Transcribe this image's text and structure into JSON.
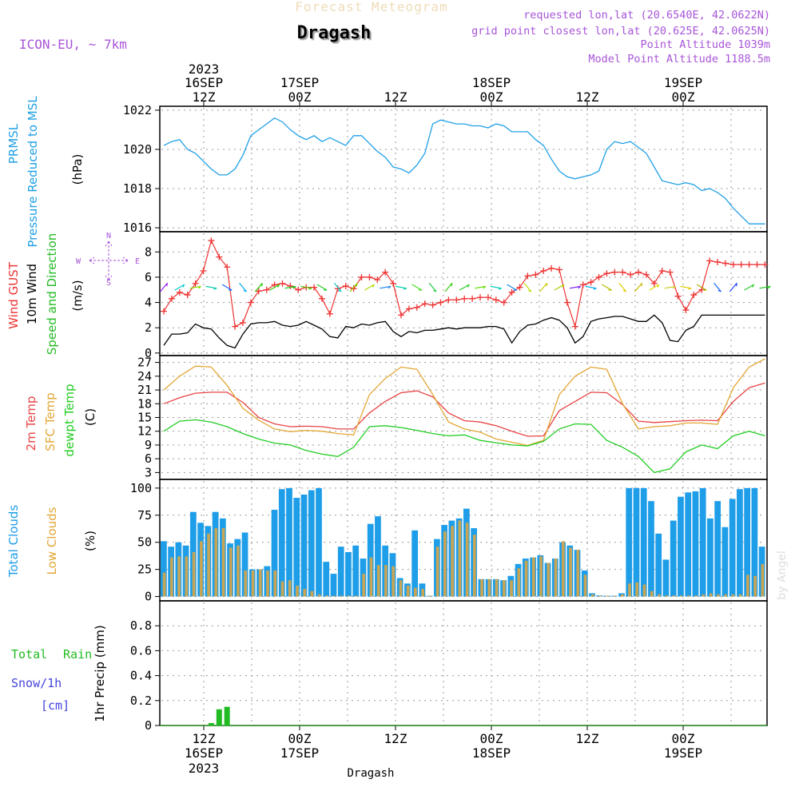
{
  "header": {
    "watermark_title": "Forecast Meteogram",
    "station": "Dragash",
    "model": "ICON-EU, ~ 7km",
    "requested": "requested lon,lat (20.6540E, 42.0622N)",
    "grid_point": "grid point closest lon,lat (20.625E, 42.0625N)",
    "point_alt": "Point Altitude 1039m",
    "model_alt": "Model Point Altitude 1188.5m",
    "footer_station": "Dragash",
    "credit": "by Angel"
  },
  "time_axis": {
    "top_year": "2023",
    "ticks": [
      {
        "hour": 12,
        "top": "12Z",
        "top_day": "16SEP",
        "bottom": "12Z",
        "bottom_day": "16SEP"
      },
      {
        "hour": 24,
        "top": "00Z",
        "top_day": "17SEP",
        "bottom": "00Z",
        "bottom_day": "17SEP"
      },
      {
        "hour": 36,
        "top": "12Z",
        "top_day": "",
        "bottom": "12Z",
        "bottom_day": ""
      },
      {
        "hour": 48,
        "top": "00Z",
        "top_day": "18SEP",
        "bottom": "00Z",
        "bottom_day": "18SEP"
      },
      {
        "hour": 60,
        "top": "12Z",
        "top_day": "",
        "bottom": "12Z",
        "bottom_day": ""
      },
      {
        "hour": 72,
        "top": "00Z",
        "top_day": "19SEP",
        "bottom": "00Z",
        "bottom_day": "19SEP"
      }
    ],
    "bottom_year": "2023"
  },
  "panel_labels": {
    "pressure": [
      "PRMSL",
      "Pressure Reduced to MSL",
      "(hPa)"
    ],
    "wind": [
      "Wind GUST",
      "10m Wind",
      "Speed and Direction",
      "(m/s)"
    ],
    "compass": [
      "N",
      "W",
      "E",
      "S"
    ],
    "temp": [
      "2m Temp",
      "SFC Temp",
      "dewpt Temp",
      "(C)"
    ],
    "clouds": [
      "Total Clouds",
      "Low Clouds",
      "(%)"
    ],
    "precip": [
      "Total",
      "Rain",
      "Snow/1h",
      "[cm]",
      "1hr Precip (mm)"
    ]
  },
  "colors": {
    "pressure": "#1fa0e6",
    "gust": "#ee3333",
    "wind": "#000000",
    "temp2m": "#e84444",
    "sfc": "#e3a736",
    "dew": "#22cc22",
    "total_cloud": "#1e9ee8",
    "low_cloud": "#c8a555",
    "rain": "#22bb22",
    "purple": "#a855d8"
  },
  "chart_data": [
    {
      "type": "line",
      "title": "PRMSL Pressure Reduced to MSL",
      "ylabel": "(hPa)",
      "ylim": [
        1015.8,
        1022.2
      ],
      "yticks": [
        1016,
        1018,
        1020,
        1022
      ],
      "xrange": [
        0,
        76
      ],
      "x": [
        0,
        1,
        2,
        3,
        4,
        5,
        6,
        7,
        8,
        9,
        10,
        11,
        12,
        13,
        14,
        15,
        16,
        17,
        18,
        19,
        20,
        21,
        22,
        23,
        24,
        25,
        26,
        27,
        28,
        29,
        30,
        31,
        32,
        33,
        34,
        35,
        36,
        37,
        38,
        39,
        40,
        41,
        42,
        43,
        44,
        45,
        46,
        47,
        48,
        49,
        50,
        51,
        52,
        53,
        54,
        55,
        56,
        57,
        58,
        59,
        60,
        61,
        62,
        63,
        64,
        65,
        66,
        67,
        68,
        69,
        70,
        71,
        72,
        73,
        74,
        75,
        76
      ],
      "values": [
        1020.2,
        1020.4,
        1020.5,
        1020.0,
        1019.8,
        1019.4,
        1019.0,
        1018.7,
        1018.7,
        1019.0,
        1019.7,
        1020.7,
        1021.0,
        1021.3,
        1021.6,
        1021.4,
        1021.0,
        1020.7,
        1020.5,
        1020.7,
        1020.4,
        1020.6,
        1020.4,
        1020.2,
        1020.7,
        1020.7,
        1020.3,
        1019.9,
        1019.6,
        1019.1,
        1019.0,
        1018.8,
        1019.2,
        1019.8,
        1021.3,
        1021.5,
        1021.4,
        1021.3,
        1021.3,
        1021.2,
        1021.2,
        1021.1,
        1021.3,
        1021.2,
        1020.9,
        1020.9,
        1020.9,
        1020.5,
        1020.2,
        1019.5,
        1018.9,
        1018.6,
        1018.5,
        1018.6,
        1018.7,
        1018.9,
        1020.0,
        1020.4,
        1020.3,
        1020.4,
        1020.1,
        1019.8,
        1019.1,
        1018.4,
        1018.3,
        1018.2,
        1018.3,
        1018.2,
        1017.9,
        1018.0,
        1017.8,
        1017.5,
        1017.0,
        1016.6,
        1016.2,
        1016.2,
        1016.2
      ]
    },
    {
      "type": "line",
      "title": "Wind GUST / 10m Wind Speed",
      "ylabel": "(m/s)",
      "ylim": [
        -0.2,
        9.6
      ],
      "yticks": [
        0,
        2,
        4,
        6,
        8
      ],
      "xrange": [
        0,
        76
      ],
      "series": [
        {
          "name": "Wind GUST",
          "x": [
            0,
            1,
            2,
            3,
            4,
            5,
            6,
            7,
            8,
            9,
            10,
            11,
            12,
            13,
            14,
            15,
            16,
            17,
            18,
            19,
            20,
            21,
            22,
            23,
            24,
            25,
            26,
            27,
            28,
            29,
            30,
            31,
            32,
            33,
            34,
            35,
            36,
            37,
            38,
            39,
            40,
            41,
            42,
            43,
            44,
            45,
            46,
            47,
            48,
            49,
            50,
            51,
            52,
            53,
            54,
            55,
            56,
            57,
            58,
            59,
            60,
            61,
            62,
            63,
            64,
            65,
            66,
            67,
            68,
            69,
            70,
            71,
            72,
            73,
            74,
            75,
            76
          ],
          "values": [
            3.3,
            4.3,
            4.8,
            4.6,
            5.5,
            6.5,
            8.9,
            7.6,
            6.8,
            2.1,
            2.4,
            4.0,
            4.9,
            5.0,
            5.4,
            5.5,
            5.3,
            5.0,
            5.2,
            5.2,
            4.3,
            3.1,
            5.1,
            5.3,
            5.1,
            6.0,
            6.0,
            5.8,
            6.4,
            5.5,
            3.0,
            3.5,
            3.6,
            3.9,
            3.8,
            4.0,
            4.2,
            4.2,
            4.3,
            4.3,
            4.4,
            4.4,
            4.2,
            4.0,
            4.8,
            5.2,
            6.1,
            6.2,
            6.5,
            6.7,
            6.6,
            4.0,
            2.1,
            5.4,
            5.6,
            6.0,
            6.3,
            6.4,
            6.4,
            6.2,
            6.4,
            6.2,
            5.5,
            6.5,
            6.4,
            4.5,
            3.4,
            4.6,
            5.0,
            7.3,
            7.2,
            7.1,
            7.0,
            7.0,
            7.0,
            7.0,
            7.0
          ]
        },
        {
          "name": "10m Wind",
          "x": [
            0,
            1,
            2,
            3,
            4,
            5,
            6,
            7,
            8,
            9,
            10,
            11,
            12,
            13,
            14,
            15,
            16,
            17,
            18,
            19,
            20,
            21,
            22,
            23,
            24,
            25,
            26,
            27,
            28,
            29,
            30,
            31,
            32,
            33,
            34,
            35,
            36,
            37,
            38,
            39,
            40,
            41,
            42,
            43,
            44,
            45,
            46,
            47,
            48,
            49,
            50,
            51,
            52,
            53,
            54,
            55,
            56,
            57,
            58,
            59,
            60,
            61,
            62,
            63,
            64,
            65,
            66,
            67,
            68,
            69,
            70,
            71,
            72,
            73,
            74,
            75,
            76
          ],
          "values": [
            0.6,
            1.5,
            1.5,
            1.6,
            2.3,
            2.0,
            1.9,
            1.2,
            0.6,
            0.4,
            1.5,
            2.3,
            2.4,
            2.4,
            2.5,
            2.2,
            2.1,
            2.2,
            2.5,
            2.2,
            1.9,
            1.3,
            1.2,
            2.1,
            2.0,
            2.3,
            2.2,
            2.4,
            2.5,
            1.7,
            1.3,
            1.7,
            1.6,
            1.8,
            1.8,
            1.9,
            2.0,
            1.9,
            2.0,
            2.0,
            2.0,
            2.1,
            2.1,
            1.9,
            0.8,
            1.7,
            2.2,
            2.3,
            2.6,
            2.8,
            2.6,
            2.0,
            0.8,
            1.3,
            2.5,
            2.7,
            2.8,
            2.9,
            2.9,
            2.7,
            2.5,
            2.5,
            3.0,
            2.4,
            1.0,
            0.9,
            1.8,
            2.1,
            3.0,
            3.0,
            3.0,
            3.0,
            3.0,
            3.0,
            3.0,
            3.0,
            3.0
          ]
        }
      ],
      "arrows": {
        "x": [
          0,
          2,
          4,
          6,
          8,
          10,
          12,
          14,
          16,
          18,
          20,
          22,
          24,
          26,
          28,
          30,
          32,
          34,
          36,
          38,
          40,
          42,
          44,
          46,
          48,
          50,
          52,
          54,
          56,
          58,
          60,
          62,
          64,
          66,
          68,
          70,
          72,
          74,
          76
        ],
        "colors": [
          "#9922ee",
          "#00cccc",
          "#88dd00",
          "#00ccaa",
          "#1166ff",
          "#00aaee",
          "#22cc00",
          "#33cc00",
          "#11cc11",
          "#55cc00",
          "#22cc22",
          "#00cccc",
          "#88cc00",
          "#aadd00",
          "#2288ee",
          "#00ccaa",
          "#44dd22",
          "#22cc44",
          "#33cc11",
          "#22cc22",
          "#66dd00",
          "#00ccbb",
          "#1188ee",
          "#bbdd00",
          "#cccc00",
          "#aacc00",
          "#7722ee",
          "#00aaee",
          "#bbbb00",
          "#ddcc00",
          "#ccbb00",
          "#dddd00",
          "#cccc22",
          "#ddcc00",
          "#aaaa00",
          "#1166ff",
          "#2244ff",
          "#22cc22",
          "#22cc22"
        ]
      }
    },
    {
      "type": "line",
      "title": "2m Temp / SFC Temp / dewpt Temp",
      "ylabel": "(C)",
      "ylim": [
        1.5,
        28.5
      ],
      "yticks": [
        3,
        6,
        9,
        12,
        15,
        18,
        21,
        24,
        27
      ],
      "xrange": [
        0,
        76
      ],
      "series": [
        {
          "name": "2m Temp",
          "x": [
            0,
            2,
            4,
            6,
            8,
            10,
            12,
            14,
            16,
            18,
            20,
            22,
            24,
            26,
            28,
            30,
            32,
            34,
            36,
            38,
            40,
            42,
            44,
            46,
            48,
            50,
            52,
            54,
            56,
            58,
            60,
            62,
            64,
            66,
            68,
            70,
            72,
            74,
            76
          ],
          "values": [
            18.0,
            19.3,
            20.3,
            20.5,
            20.5,
            18.3,
            15.0,
            13.6,
            13.0,
            13.1,
            13.0,
            12.5,
            12.5,
            16.0,
            18.5,
            20.4,
            20.8,
            19.5,
            16.0,
            14.3,
            14.0,
            13.2,
            12.0,
            10.9,
            11.0,
            16.5,
            18.5,
            20.5,
            20.4,
            17.8,
            14.2,
            13.9,
            14.1,
            14.3,
            14.4,
            14.3,
            18.5,
            21.5,
            22.5
          ]
        },
        {
          "name": "SFC Temp",
          "x": [
            0,
            2,
            4,
            6,
            8,
            10,
            12,
            14,
            16,
            18,
            20,
            22,
            24,
            26,
            28,
            30,
            32,
            34,
            36,
            38,
            40,
            42,
            44,
            46,
            48,
            50,
            52,
            54,
            56,
            58,
            60,
            62,
            64,
            66,
            68,
            70,
            72,
            74,
            76
          ],
          "values": [
            21.0,
            24.0,
            26.2,
            26.0,
            22.0,
            17.0,
            14.4,
            12.5,
            11.9,
            12.2,
            12.0,
            11.5,
            11.2,
            20.0,
            23.5,
            26.0,
            25.5,
            20.0,
            14.0,
            12.5,
            11.8,
            10.3,
            9.6,
            8.9,
            10.0,
            20.0,
            24.0,
            26.0,
            25.5,
            18.0,
            12.5,
            13.0,
            13.2,
            13.8,
            13.8,
            13.5,
            21.5,
            26.0,
            27.8
          ]
        },
        {
          "name": "dewpt Temp",
          "x": [
            0,
            2,
            4,
            6,
            8,
            10,
            12,
            14,
            16,
            18,
            20,
            22,
            24,
            26,
            28,
            30,
            32,
            34,
            36,
            38,
            40,
            42,
            44,
            46,
            48,
            50,
            52,
            54,
            56,
            58,
            60,
            62,
            64,
            66,
            68,
            70,
            72,
            74,
            76
          ],
          "values": [
            12.0,
            14.2,
            14.5,
            14.0,
            13.0,
            11.5,
            10.3,
            9.4,
            9.0,
            7.8,
            7.0,
            6.5,
            8.5,
            13.0,
            13.2,
            12.8,
            12.2,
            11.5,
            11.0,
            11.2,
            10.0,
            9.5,
            9.0,
            8.8,
            9.8,
            12.5,
            13.6,
            13.5,
            10.0,
            8.5,
            6.5,
            3.0,
            3.8,
            7.5,
            9.0,
            8.2,
            11.0,
            12.0,
            11.0
          ]
        }
      ]
    },
    {
      "type": "bar",
      "title": "Total Clouds / Low Clouds",
      "ylabel": "(%)",
      "ylim": [
        -4,
        108
      ],
      "yticks": [
        0,
        25,
        50,
        75,
        100
      ],
      "xrange": [
        0,
        76
      ],
      "series": [
        {
          "name": "Total Clouds",
          "values": [
            51,
            46,
            50,
            47,
            78,
            68,
            65,
            78,
            72,
            49,
            53,
            59,
            25,
            25,
            28,
            80,
            99,
            100,
            91,
            94,
            98,
            100,
            32,
            21,
            46,
            41,
            47,
            35,
            67,
            74,
            47,
            40,
            17,
            12,
            61,
            12,
            0,
            53,
            66,
            70,
            72,
            81,
            63,
            16,
            16,
            16,
            15,
            19,
            30,
            35,
            36,
            38,
            31,
            35,
            50,
            47,
            43,
            24,
            3,
            1,
            0,
            0,
            3,
            100,
            100,
            100,
            88,
            58,
            34,
            70,
            92,
            96,
            97,
            100,
            72,
            88,
            64,
            90,
            99,
            100,
            100,
            46
          ]
        },
        {
          "name": "Low Clouds",
          "values": [
            22,
            36,
            37,
            37,
            41,
            51,
            58,
            63,
            63,
            45,
            47,
            24,
            24,
            25,
            24,
            24,
            14,
            15,
            10,
            7,
            5,
            2,
            1,
            0,
            0,
            0,
            0,
            21,
            36,
            29,
            29,
            28,
            15,
            10,
            8,
            7,
            0,
            46,
            60,
            65,
            70,
            68,
            57,
            16,
            16,
            16,
            15,
            15,
            26,
            33,
            36,
            37,
            31,
            35,
            51,
            45,
            43,
            20,
            2,
            0,
            0,
            0,
            2,
            12,
            13,
            11,
            5,
            2,
            1,
            1,
            1,
            1,
            1,
            2,
            3,
            2,
            2,
            2,
            2,
            20,
            19,
            30
          ]
        }
      ]
    },
    {
      "type": "bar",
      "title": "1hr Precip (mm)",
      "ylabel": "1hr Precip (mm)",
      "ylim": [
        0,
        1.0
      ],
      "yticks": [
        0,
        0.2,
        0.4,
        0.6,
        0.8
      ],
      "xrange": [
        0,
        76
      ],
      "series": [
        {
          "name": "Total Rain",
          "x": [
            6,
            7,
            8
          ],
          "values": [
            0.02,
            0.13,
            0.15
          ]
        }
      ]
    }
  ]
}
